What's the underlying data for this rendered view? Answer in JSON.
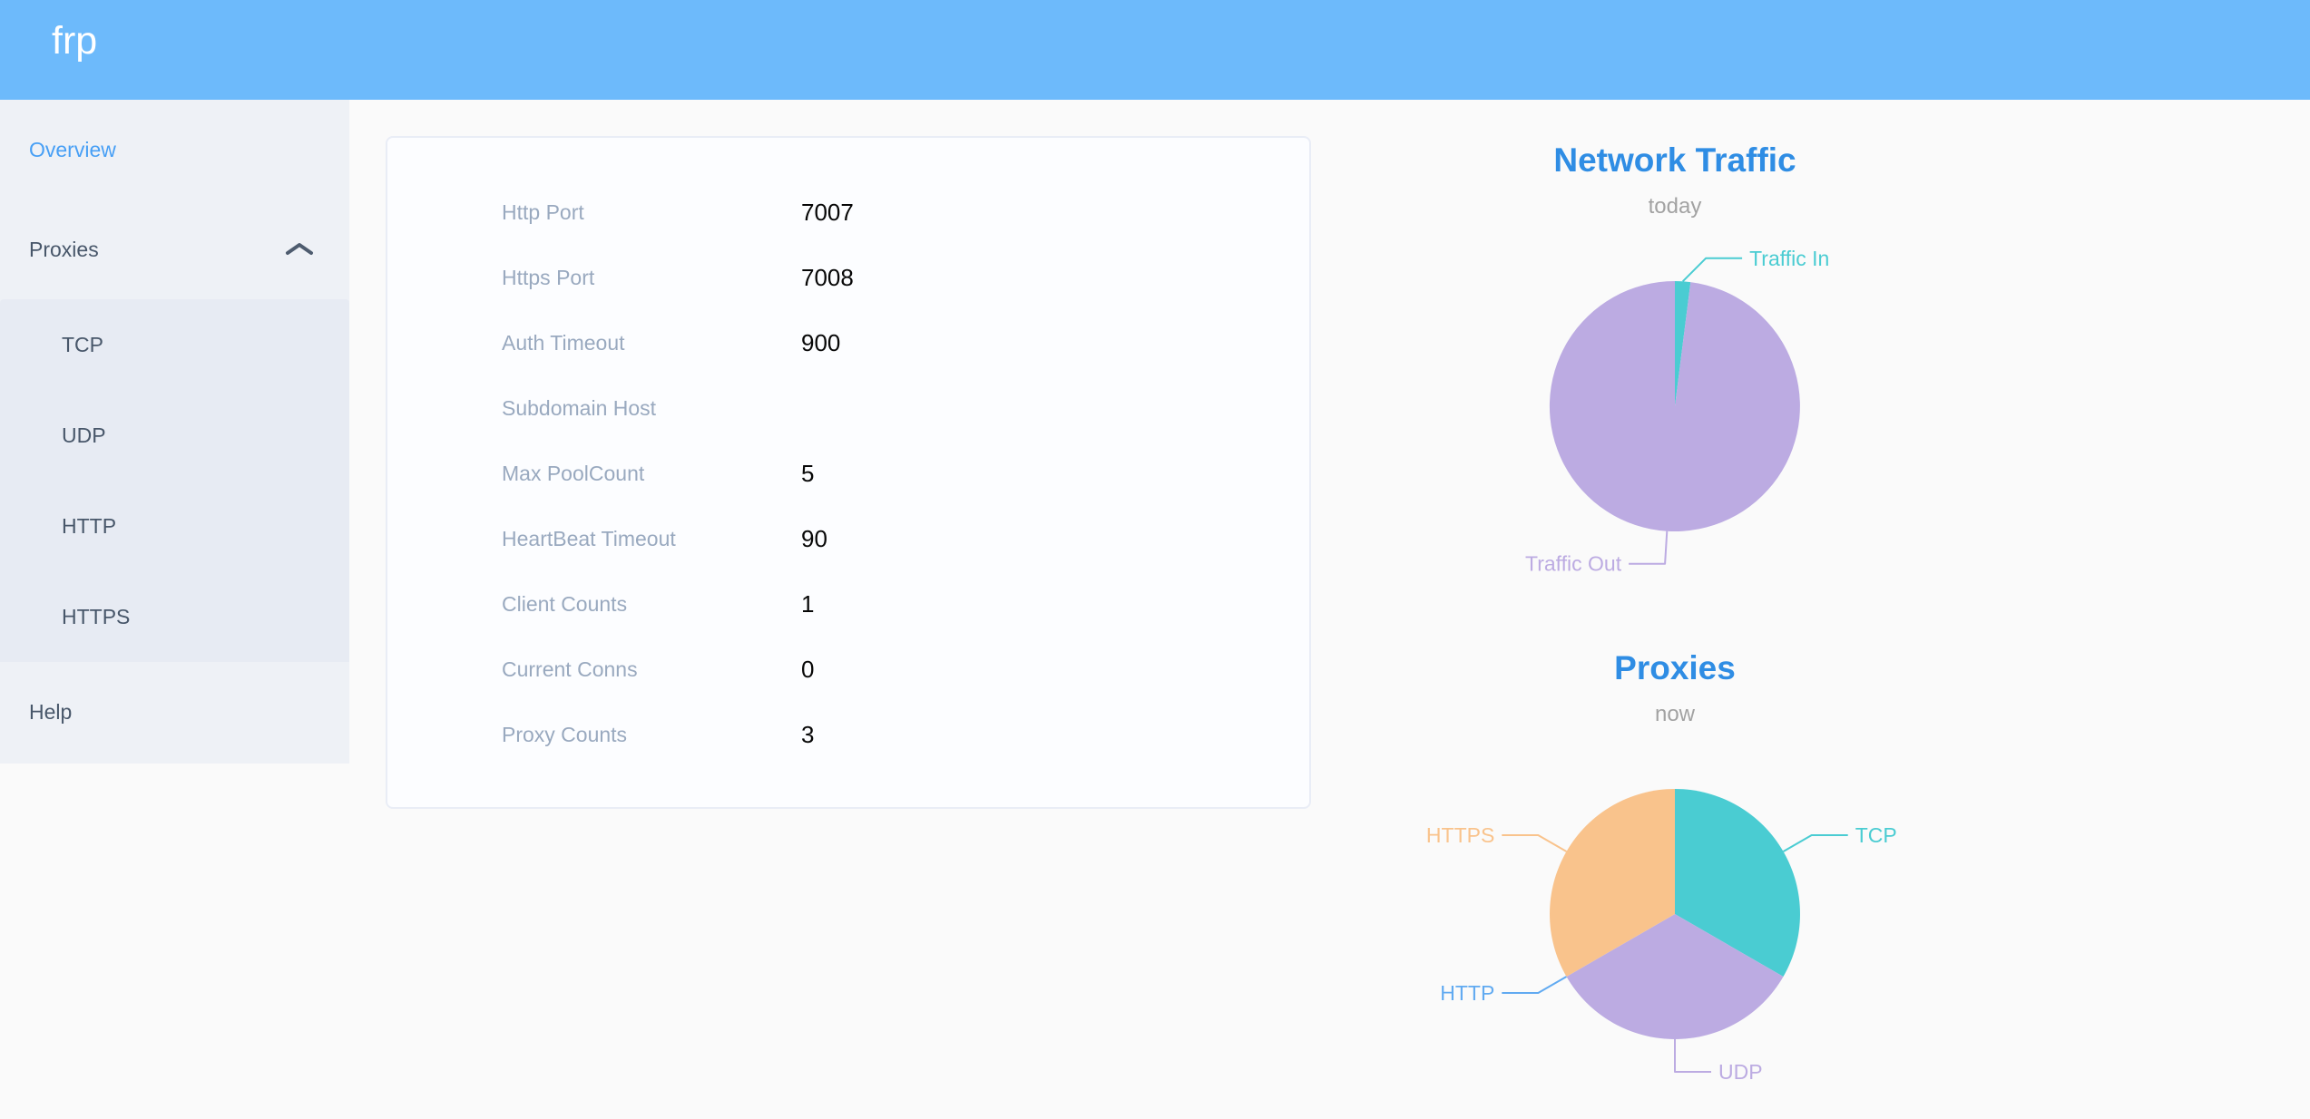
{
  "header": {
    "logo": "frp",
    "bg_color": "#6dbafb"
  },
  "sidebar": {
    "overview": {
      "label": "Overview",
      "active": true
    },
    "proxies": {
      "label": "Proxies",
      "expanded": true,
      "chevron_icon": "chevron-up-icon",
      "children": [
        {
          "label": "TCP"
        },
        {
          "label": "UDP"
        },
        {
          "label": "HTTP"
        },
        {
          "label": "HTTPS"
        }
      ]
    },
    "help": {
      "label": "Help"
    },
    "active_color": "#479ff5",
    "text_color": "#48576a"
  },
  "server_info": {
    "rows": [
      {
        "label": "Http Port",
        "value": "7007"
      },
      {
        "label": "Https Port",
        "value": "7008"
      },
      {
        "label": "Auth Timeout",
        "value": "900"
      },
      {
        "label": "Subdomain Host",
        "value": ""
      },
      {
        "label": "Max PoolCount",
        "value": "5"
      },
      {
        "label": "HeartBeat Timeout",
        "value": "90"
      },
      {
        "label": "Client Counts",
        "value": "1"
      },
      {
        "label": "Current Conns",
        "value": "0"
      },
      {
        "label": "Proxy Counts",
        "value": "3"
      }
    ],
    "label_color": "#99a9bf",
    "value_color": "#070707"
  },
  "chart_data": [
    {
      "type": "pie",
      "title": "Network Traffic",
      "subtitle": "today",
      "legend_position": "none",
      "title_color": "#2f8de4",
      "subtitle_color": "#a2a2a2",
      "slices": [
        {
          "label": "Traffic In",
          "value": 2,
          "color": "#4accd2"
        },
        {
          "label": "Traffic Out",
          "value": 98,
          "color": "#bcabe2"
        }
      ]
    },
    {
      "type": "pie",
      "title": "Proxies",
      "subtitle": "now",
      "legend_position": "none",
      "title_color": "#2f8de4",
      "subtitle_color": "#a2a2a2",
      "slices": [
        {
          "label": "TCP",
          "value": 1,
          "color": "#4accd2"
        },
        {
          "label": "UDP",
          "value": 1,
          "color": "#bcabe2"
        },
        {
          "label": "HTTP",
          "value": 0,
          "color": "#61aaf1"
        },
        {
          "label": "HTTPS",
          "value": 1,
          "color": "#f9c38c"
        }
      ]
    }
  ]
}
